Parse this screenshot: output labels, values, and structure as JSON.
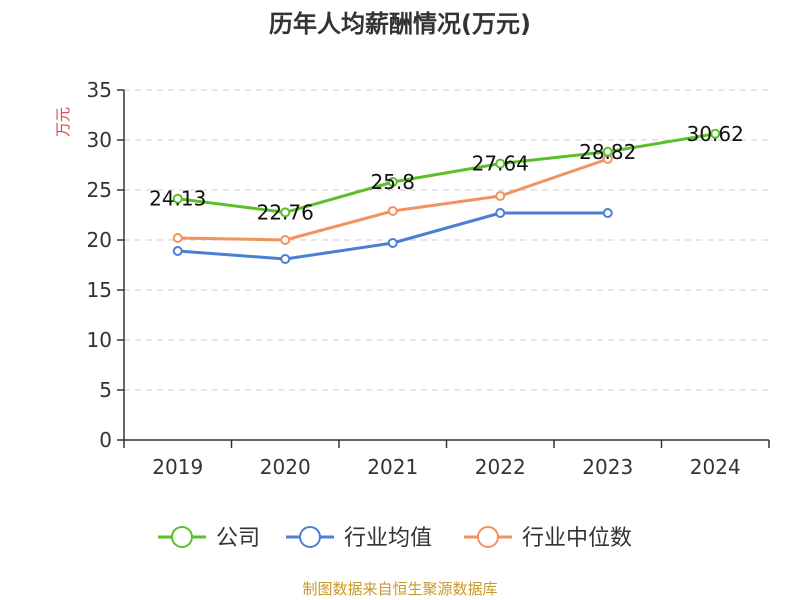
{
  "chart_data": {
    "type": "line",
    "title": "历年人均薪酬情况(万元)",
    "ylabel": "万元",
    "xlabel": "",
    "categories": [
      "2019",
      "2020",
      "2021",
      "2022",
      "2023",
      "2024"
    ],
    "ylim": [
      0,
      35
    ],
    "yticks": [
      0,
      5,
      10,
      15,
      20,
      25,
      30,
      35
    ],
    "grid": true,
    "legend_position": "bottom",
    "series": [
      {
        "name": "公司",
        "color": "#5cbf2a",
        "values": [
          24.13,
          22.76,
          25.8,
          27.64,
          28.82,
          30.62
        ],
        "labels": [
          "24.13",
          "22.76",
          "25.8",
          "27.64",
          "28.82",
          "30.62"
        ]
      },
      {
        "name": "行业均值",
        "color": "#4a7fd4",
        "values": [
          18.9,
          18.1,
          19.7,
          22.7,
          22.7,
          null
        ]
      },
      {
        "name": "行业中位数",
        "color": "#f39261",
        "values": [
          20.2,
          20.0,
          22.9,
          24.4,
          28.1,
          null
        ]
      }
    ],
    "source": "制图数据来自恒生聚源数据库"
  }
}
